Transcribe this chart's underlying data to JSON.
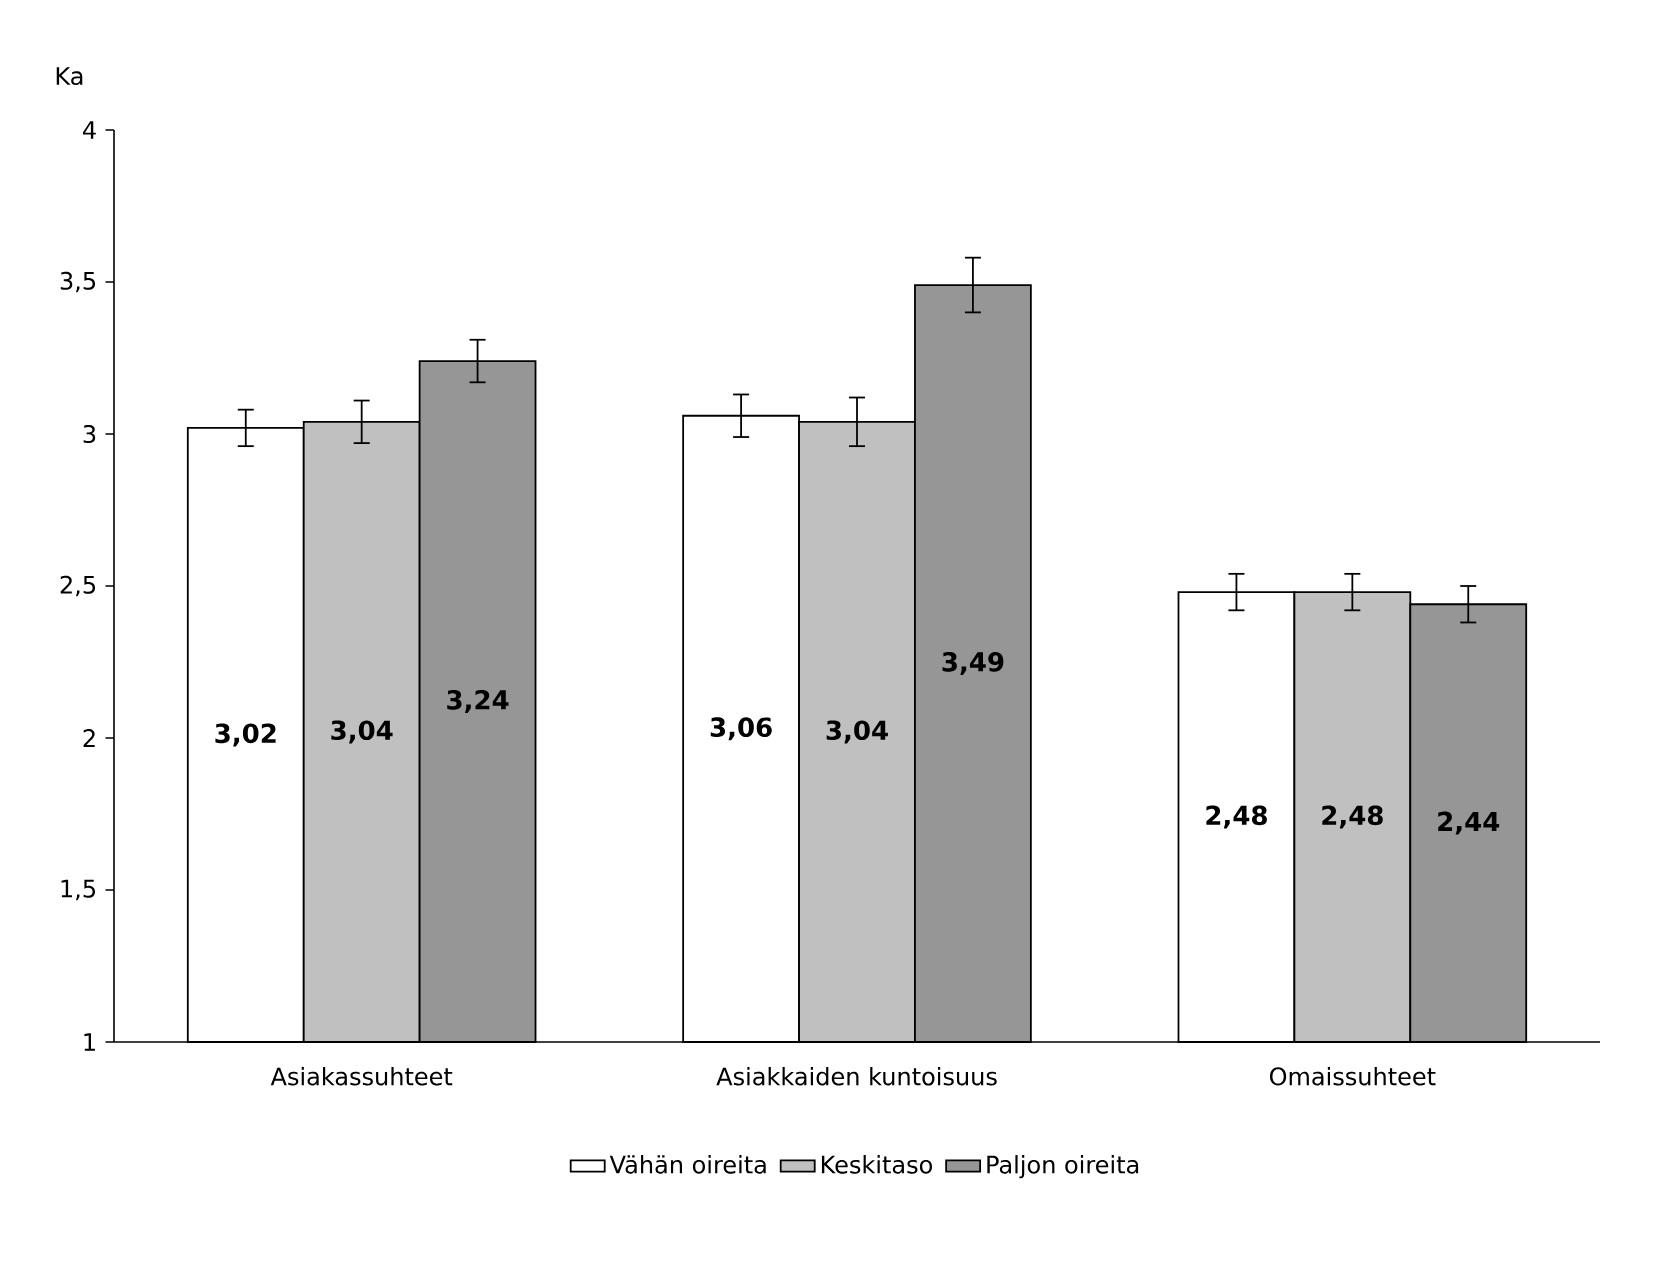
{
  "chart_data": {
    "type": "bar",
    "ylabel": "Ka",
    "categories": [
      "Asiakassuhteet",
      "Asiakkaiden kuntoisuus",
      "Omaissuhteet"
    ],
    "series": [
      {
        "name": "Vähän oireita",
        "color": "#ffffff",
        "values": [
          3.02,
          3.06,
          2.48
        ],
        "errors": [
          0.06,
          0.07,
          0.06
        ],
        "value_labels": [
          "3,02",
          "3,06",
          "2,48"
        ]
      },
      {
        "name": "Keskitaso",
        "color": "#c0c0c0",
        "values": [
          3.04,
          3.04,
          2.48
        ],
        "errors": [
          0.07,
          0.08,
          0.06
        ],
        "value_labels": [
          "3,04",
          "3,04",
          "2,48"
        ]
      },
      {
        "name": "Paljon oireita",
        "color": "#969696",
        "values": [
          3.24,
          3.49,
          2.44
        ],
        "errors": [
          0.07,
          0.09,
          0.06
        ],
        "value_labels": [
          "3,24",
          "3,49",
          "2,44"
        ]
      }
    ],
    "ylim": [
      1,
      4
    ],
    "yticks": [
      1,
      {
        "value": 1.5,
        "label": "1,5"
      },
      2,
      {
        "value": 2.5,
        "label": "2,5"
      },
      3,
      {
        "value": 3.5,
        "label": "3,5"
      },
      4
    ],
    "grid": false,
    "legend": "bottom"
  }
}
